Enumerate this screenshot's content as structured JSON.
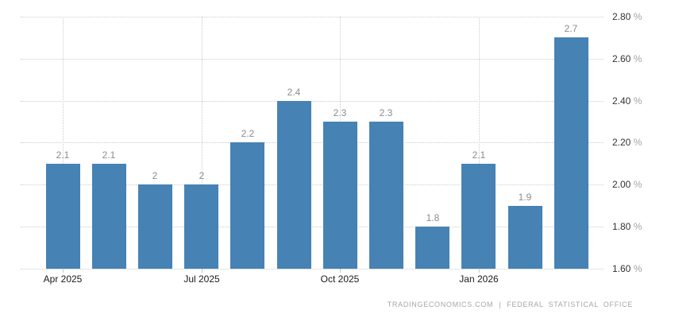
{
  "chart_data": {
    "type": "bar",
    "title": "",
    "xlabel": "",
    "ylabel": "",
    "categories": [
      "Apr 2025",
      "",
      "",
      "Jul 2025",
      "",
      "",
      "Oct 2025",
      "",
      "",
      "Jan 2026",
      "",
      ""
    ],
    "values": [
      2.1,
      2.1,
      2.0,
      2.0,
      2.2,
      2.4,
      2.3,
      2.3,
      1.8,
      2.1,
      1.9,
      2.7
    ],
    "data_labels": [
      "2.1",
      "2.1",
      "2",
      "2",
      "2.2",
      "2.4",
      "2.3",
      "2.3",
      "1.8",
      "2.1",
      "1.9",
      "2.7"
    ],
    "y_ticks": [
      1.6,
      1.8,
      2.0,
      2.2,
      2.4,
      2.6,
      2.8
    ],
    "y_tick_labels": [
      "1.60 %",
      "1.80 %",
      "2.00 %",
      "2.20 %",
      "2.40 %",
      "2.60 %",
      "2.80 %"
    ],
    "ylim": [
      1.6,
      2.8
    ],
    "grid": true,
    "legend": "none",
    "y_axis_side": "right",
    "colors": {
      "bar": "#4682b4",
      "grid": "#cccccc",
      "tick": "#c9c9c9",
      "data_label": "#8c8c8c",
      "x_label": "#1a1a1a",
      "y_label_number": "#333333",
      "y_label_percent": "#a3a3a3",
      "attribution": "#a6a6a6"
    }
  },
  "footer": {
    "source": "TRADINGECONOMICS.COM",
    "separator": "|",
    "provider": "FEDERAL STATISTICAL OFFICE"
  }
}
